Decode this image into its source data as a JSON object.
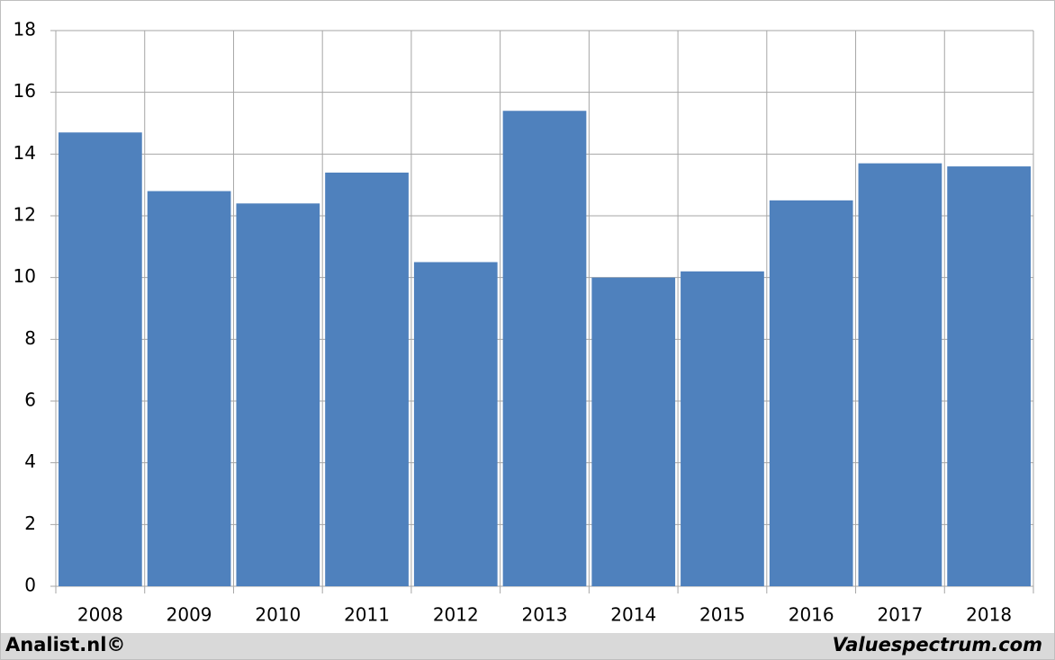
{
  "chart_data": {
    "type": "bar",
    "categories": [
      "2008",
      "2009",
      "2010",
      "2011",
      "2012",
      "2013",
      "2014",
      "2015",
      "2016",
      "2017",
      "2018"
    ],
    "values": [
      14.7,
      12.8,
      12.4,
      13.4,
      10.5,
      15.4,
      10.0,
      10.2,
      12.5,
      13.7,
      13.6
    ],
    "color": "#4f81bd",
    "ylim": [
      0,
      18
    ],
    "yticks": [
      0,
      2,
      4,
      6,
      8,
      10,
      12,
      14,
      16,
      18
    ],
    "grid": true
  },
  "footer": {
    "left": "Analist.nl©",
    "right": "Valuespectrum.com"
  }
}
